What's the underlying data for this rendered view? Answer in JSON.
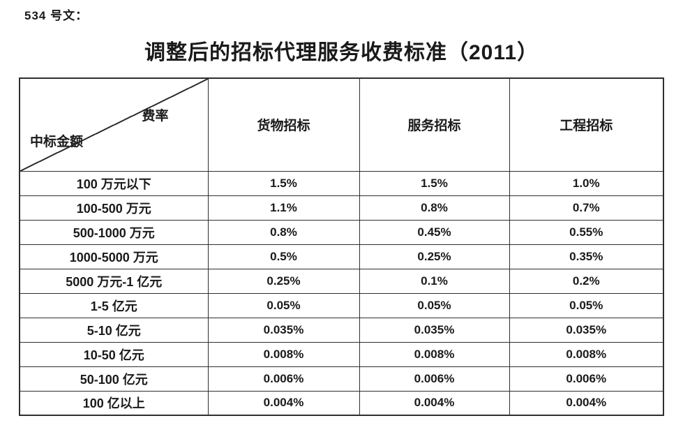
{
  "page": {
    "doc_label": "534 号文：",
    "title": "调整后的招标代理服务收费标准（2011）"
  },
  "table": {
    "corner": {
      "top_right_label": "费率",
      "bottom_left_label": "中标金额"
    },
    "columns": [
      "货物招标",
      "服务招标",
      "工程招标"
    ],
    "rows": [
      {
        "label": "100 万元以下",
        "values": [
          "1.5%",
          "1.5%",
          "1.0%"
        ]
      },
      {
        "label": "100-500 万元",
        "values": [
          "1.1%",
          "0.8%",
          "0.7%"
        ]
      },
      {
        "label": "500-1000 万元",
        "values": [
          "0.8%",
          "0.45%",
          "0.55%"
        ]
      },
      {
        "label": "1000-5000 万元",
        "values": [
          "0.5%",
          "0.25%",
          "0.35%"
        ]
      },
      {
        "label": "5000 万元-1 亿元",
        "values": [
          "0.25%",
          "0.1%",
          "0.2%"
        ]
      },
      {
        "label": "1-5 亿元",
        "values": [
          "0.05%",
          "0.05%",
          "0.05%"
        ]
      },
      {
        "label": "5-10 亿元",
        "values": [
          "0.035%",
          "0.035%",
          "0.035%"
        ]
      },
      {
        "label": "10-50 亿元",
        "values": [
          "0.008%",
          "0.008%",
          "0.008%"
        ]
      },
      {
        "label": "50-100 亿元",
        "values": [
          "0.006%",
          "0.006%",
          "0.006%"
        ]
      },
      {
        "label": "100 亿以上",
        "values": [
          "0.004%",
          "0.004%",
          "0.004%"
        ]
      }
    ],
    "colors": {
      "border": "#2e2e2e",
      "text": "#1a1a1a",
      "background": "#ffffff"
    }
  }
}
